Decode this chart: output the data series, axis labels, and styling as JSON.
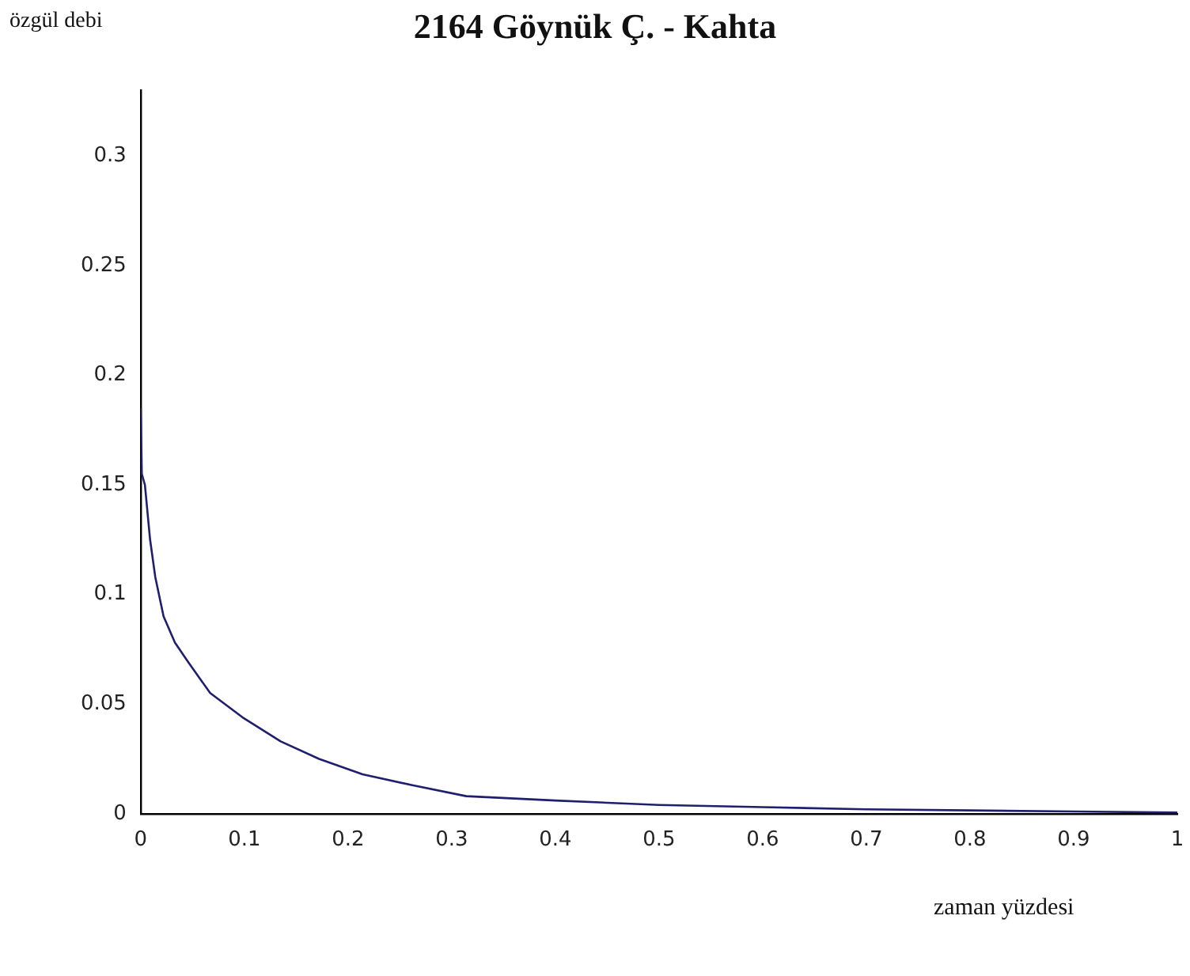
{
  "chart_data": {
    "type": "line",
    "title": "2164 Göynük Ç. - Kahta",
    "xlabel": "zaman yüzdesi",
    "ylabel": "özgül debi",
    "series": [
      {
        "color": "#1f1f6e",
        "x": [
          0,
          0.001,
          0.004,
          0.009,
          0.014,
          0.022,
          0.033,
          0.046,
          0.067,
          0.098,
          0.135,
          0.172,
          0.214,
          0.262,
          0.314,
          0.4,
          0.5,
          0.6,
          0.7,
          0.8,
          0.9,
          1
        ],
        "values": [
          0.185,
          0.155,
          0.15,
          0.125,
          0.108,
          0.09,
          0.078,
          0.069,
          0.055,
          0.044,
          0.033,
          0.025,
          0.018,
          0.013,
          0.008,
          0.006,
          0.004,
          0.003,
          0.002,
          0.0015,
          0.001,
          0.0005
        ]
      }
    ],
    "xlim": [
      0,
      1
    ],
    "xticks": [
      0,
      0.1,
      0.2,
      0.3,
      0.4,
      0.5,
      0.6,
      0.7,
      0.8,
      0.9,
      1
    ],
    "ylim": [
      0,
      0.33
    ],
    "yticks": [
      0,
      0.05,
      0.1,
      0.15,
      0.2,
      0.25,
      0.3
    ],
    "grid": false,
    "legend": false,
    "marker": "none",
    "line_style": "solid"
  }
}
